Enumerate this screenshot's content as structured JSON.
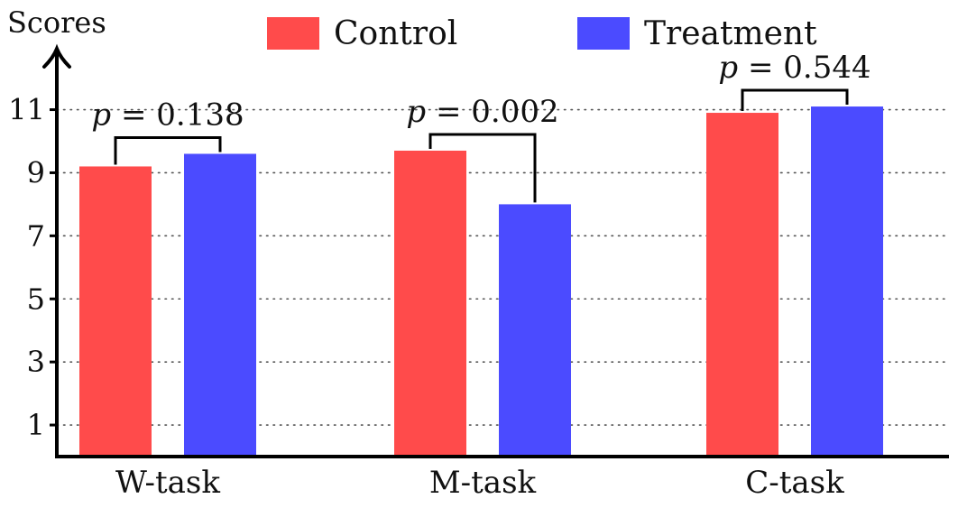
{
  "chart_data": {
    "type": "bar",
    "ylabel": "Scores",
    "categories": [
      "W-task",
      "M-task",
      "C-task"
    ],
    "yticks": [
      1,
      3,
      5,
      7,
      9,
      11
    ],
    "ylim": [
      0,
      12
    ],
    "grid": "horizontal dotted",
    "legend_position": "top",
    "series": [
      {
        "name": "Control",
        "color": "#ff4b4b",
        "values": [
          9.2,
          9.7,
          10.9
        ]
      },
      {
        "name": "Treatment",
        "color": "#4b4bff",
        "values": [
          9.6,
          8.0,
          11.1
        ]
      }
    ],
    "annotations": [
      {
        "category": "W-task",
        "text": "p = 0.138"
      },
      {
        "category": "M-task",
        "text": "p = 0.002"
      },
      {
        "category": "C-task",
        "text": "p = 0.544"
      }
    ]
  }
}
